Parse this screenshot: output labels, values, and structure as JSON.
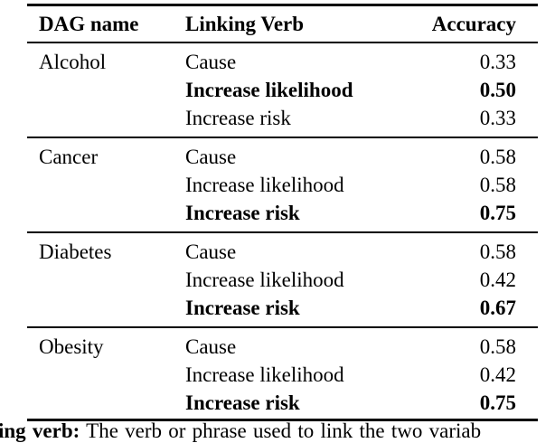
{
  "table": {
    "columns": [
      "DAG name",
      "Linking Verb",
      "Accuracy"
    ],
    "groups": [
      {
        "name": "Alcohol",
        "rows": [
          {
            "verb": "Cause",
            "accuracy": "0.33",
            "bold": false
          },
          {
            "verb": "Increase likelihood",
            "accuracy": "0.50",
            "bold": true
          },
          {
            "verb": "Increase risk",
            "accuracy": "0.33",
            "bold": false
          }
        ]
      },
      {
        "name": "Cancer",
        "rows": [
          {
            "verb": "Cause",
            "accuracy": "0.58",
            "bold": false
          },
          {
            "verb": "Increase likelihood",
            "accuracy": "0.58",
            "bold": false
          },
          {
            "verb": "Increase risk",
            "accuracy": "0.75",
            "bold": true
          }
        ]
      },
      {
        "name": "Diabetes",
        "rows": [
          {
            "verb": "Cause",
            "accuracy": "0.58",
            "bold": false
          },
          {
            "verb": "Increase likelihood",
            "accuracy": "0.42",
            "bold": false
          },
          {
            "verb": "Increase risk",
            "accuracy": "0.67",
            "bold": true
          }
        ]
      },
      {
        "name": "Obesity",
        "rows": [
          {
            "verb": "Cause",
            "accuracy": "0.58",
            "bold": false
          },
          {
            "verb": "Increase likelihood",
            "accuracy": "0.42",
            "bold": false
          },
          {
            "verb": "Increase risk",
            "accuracy": "0.75",
            "bold": true
          }
        ]
      }
    ]
  },
  "caption": {
    "bold_part": "ing verb:",
    "text_part": " The verb or phrase used to link the two variab"
  },
  "colors": {
    "text": "#000000",
    "background": "#ffffff",
    "rule": "#000000"
  }
}
